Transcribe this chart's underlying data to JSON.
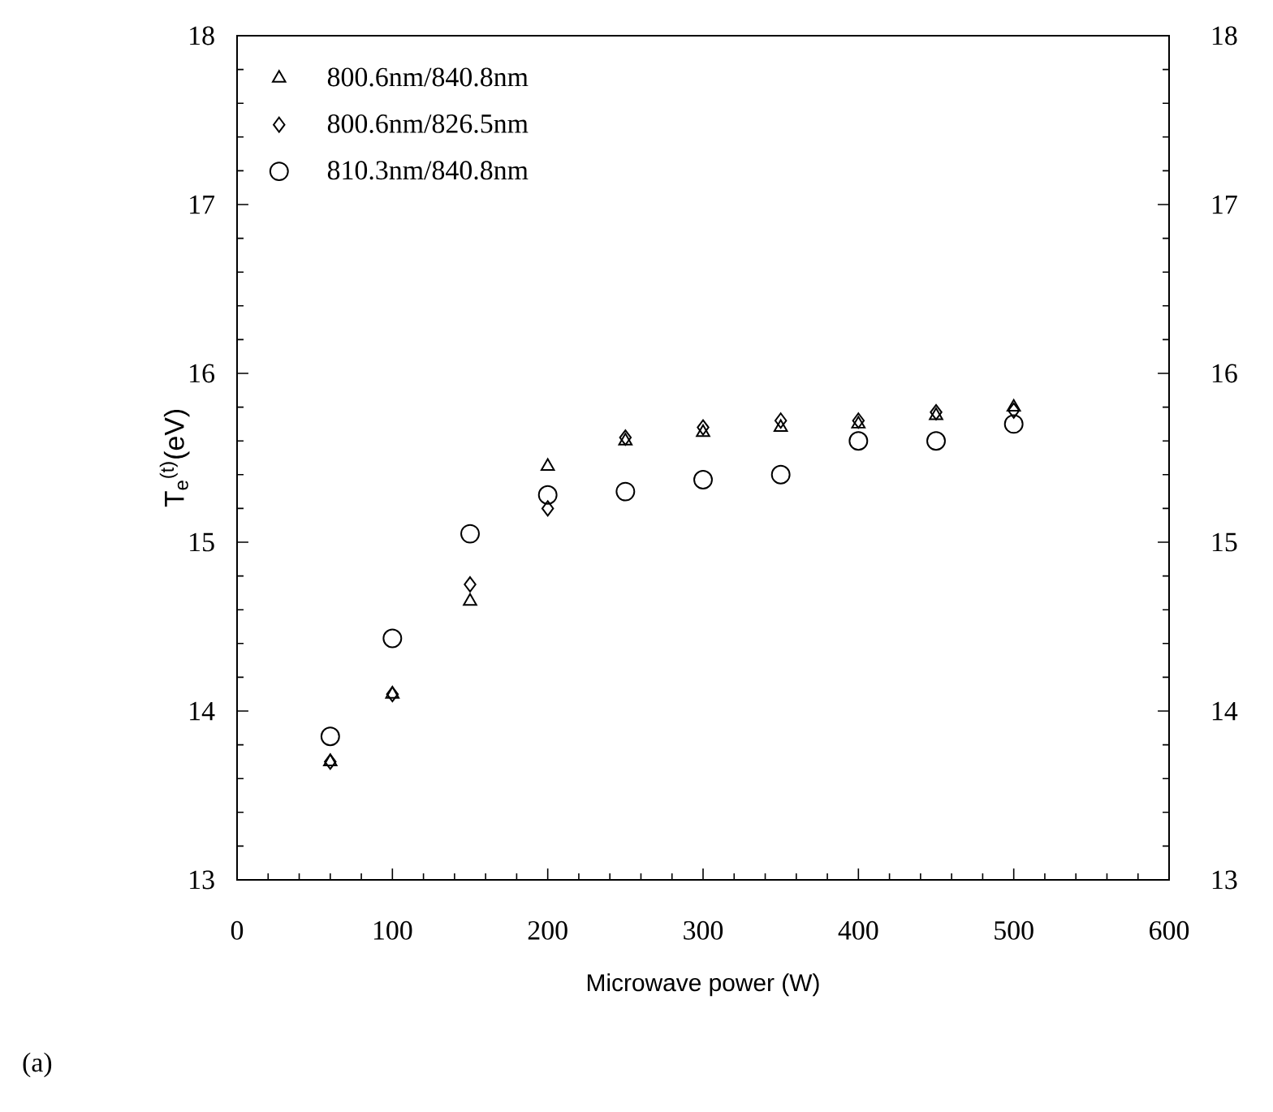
{
  "chart_data": {
    "type": "scatter",
    "xlabel": "Microwave power (W)",
    "ylabel": "T$_{e}$$^{(t)}$(eV)",
    "annotations": [
      "(a)"
    ],
    "x": [
      60,
      100,
      150,
      200,
      250,
      300,
      350,
      400,
      450,
      500
    ],
    "series": [
      {
        "name": "800.6nm/840.8nm",
        "color": "#000000",
        "marker": "triangle",
        "values": [
          13.7,
          14.1,
          14.65,
          15.45,
          15.6,
          15.65,
          15.68,
          15.7,
          15.75,
          15.8
        ]
      },
      {
        "name": "800.6nm/826.5nm",
        "color": "#000000",
        "marker": "diamond",
        "values": [
          13.7,
          14.1,
          14.75,
          15.2,
          15.62,
          15.68,
          15.72,
          15.72,
          15.77,
          15.78
        ]
      },
      {
        "name": "810.3nm/840.8nm",
        "color": "#000000",
        "marker": "circle",
        "values": [
          13.85,
          14.43,
          15.05,
          15.28,
          15.3,
          15.37,
          15.4,
          15.6,
          15.6,
          15.7
        ]
      }
    ],
    "xlim": [
      0,
      600
    ],
    "xticks": [
      0,
      100,
      200,
      300,
      400,
      500,
      600
    ],
    "ylim": [
      13,
      18
    ],
    "yticks": [
      13,
      14,
      15,
      16,
      17,
      18
    ],
    "y2lim": [
      13,
      18
    ],
    "y2ticks": [
      13,
      14,
      15,
      16,
      17,
      18
    ],
    "grid": false,
    "legend": "top left"
  }
}
